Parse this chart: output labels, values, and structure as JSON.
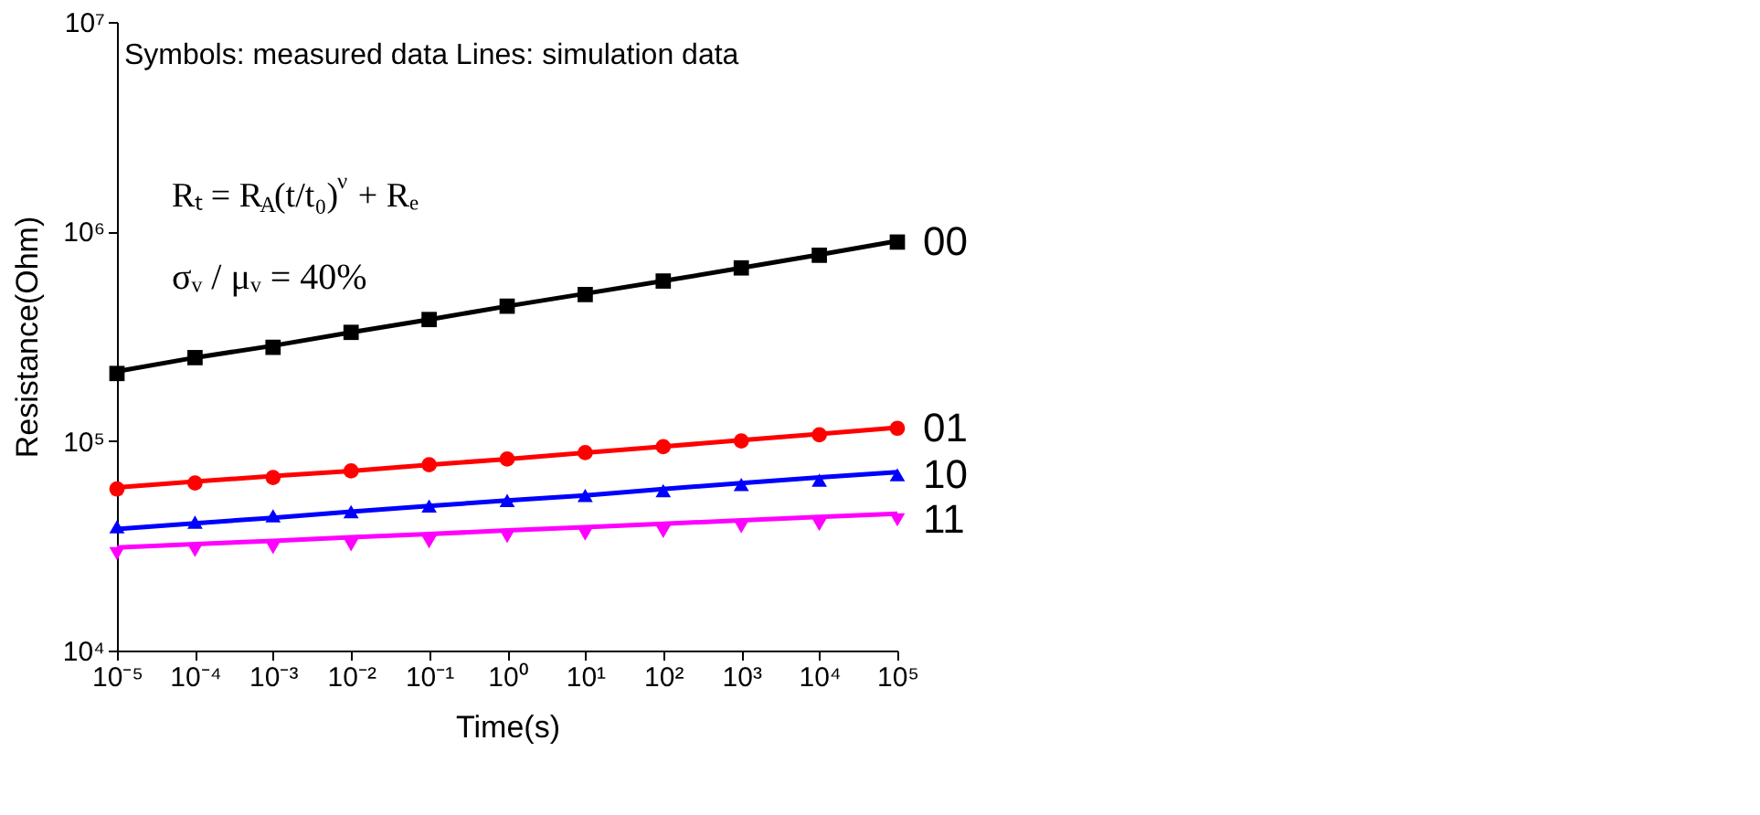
{
  "chart_data": {
    "type": "scatter",
    "xlabel": "Time(s)",
    "ylabel": "Resistance(Ohm)",
    "annotations": [
      "Symbols: measured data    Lines: simulation data",
      "Rₜ = R$_{A}$(t/t₀)$^{ν}$ + Rₑ",
      "σᵥ / μᵥ = 40%"
    ],
    "x": [
      1e-05,
      0.0001,
      0.001,
      0.01,
      0.1,
      1,
      10,
      100,
      1000,
      10000,
      100000
    ],
    "series": [
      {
        "name": "00",
        "color": "#000000",
        "marker": "square",
        "values": [
          210000,
          250000,
          280000,
          330000,
          380000,
          440000,
          500000,
          580000,
          670000,
          770000,
          890000
        ]
      },
      {
        "name": "01",
        "color": "#ff0000",
        "marker": "circle",
        "values": [
          59000,
          63000,
          67000,
          72000,
          77000,
          82000,
          88000,
          94000,
          100000,
          107000,
          115000
        ]
      },
      {
        "name": "10",
        "color": "#0000ff",
        "marker": "triangle",
        "values": [
          39000,
          41000,
          44000,
          46000,
          49000,
          52000,
          55000,
          58000,
          62000,
          65000,
          69000
        ]
      },
      {
        "name": "11",
        "color": "#ff00ff",
        "marker": "triangle-down",
        "values": [
          29000,
          30000,
          31000,
          32000,
          33000,
          35000,
          36000,
          37000,
          39000,
          40000,
          42000
        ]
      },
      {
        "type": "line",
        "color": "#000000",
        "values": [
          215000,
          250000,
          285000,
          330000,
          380000,
          440000,
          505000,
          580000,
          670000,
          775000,
          900000
        ]
      },
      {
        "type": "line",
        "color": "#ff0000",
        "values": [
          60000,
          64000,
          68000,
          72000,
          77000,
          82000,
          88000,
          94000,
          101000,
          108000,
          116000
        ]
      },
      {
        "type": "line",
        "color": "#0000ff",
        "values": [
          38000,
          40500,
          43000,
          46000,
          49000,
          52000,
          55000,
          59000,
          63000,
          67000,
          71000
        ]
      },
      {
        "type": "line",
        "color": "#ff00ff",
        "values": [
          31000,
          32200,
          33400,
          34700,
          36000,
          37400,
          38800,
          40300,
          41800,
          43400,
          45000
        ]
      }
    ],
    "log": "xy",
    "xlim": [
      1e-05,
      100000.0
    ],
    "ylim": [
      10000.0,
      10000000.0
    ],
    "xticks": [
      {
        "value": 1e-05,
        "label": "10⁻⁵"
      },
      {
        "value": 0.0001,
        "label": "10⁻⁴"
      },
      {
        "value": 0.001,
        "label": "10⁻³"
      },
      {
        "value": 0.01,
        "label": "10⁻²"
      },
      {
        "value": 0.1,
        "label": "10⁻¹"
      },
      {
        "value": 1,
        "label": "10⁰"
      },
      {
        "value": 10,
        "label": "10¹"
      },
      {
        "value": 100,
        "label": "10²"
      },
      {
        "value": 1000,
        "label": "10³"
      },
      {
        "value": 10000,
        "label": "10⁴"
      },
      {
        "value": 100000,
        "label": "10⁵"
      }
    ],
    "yticks": [
      {
        "value": 10000.0,
        "label": "10⁴"
      },
      {
        "value": 100000.0,
        "label": "10⁵"
      },
      {
        "value": 1000000.0,
        "label": "10⁶"
      },
      {
        "value": 10000000.0,
        "label": "10⁷"
      }
    ],
    "grid": false
  }
}
